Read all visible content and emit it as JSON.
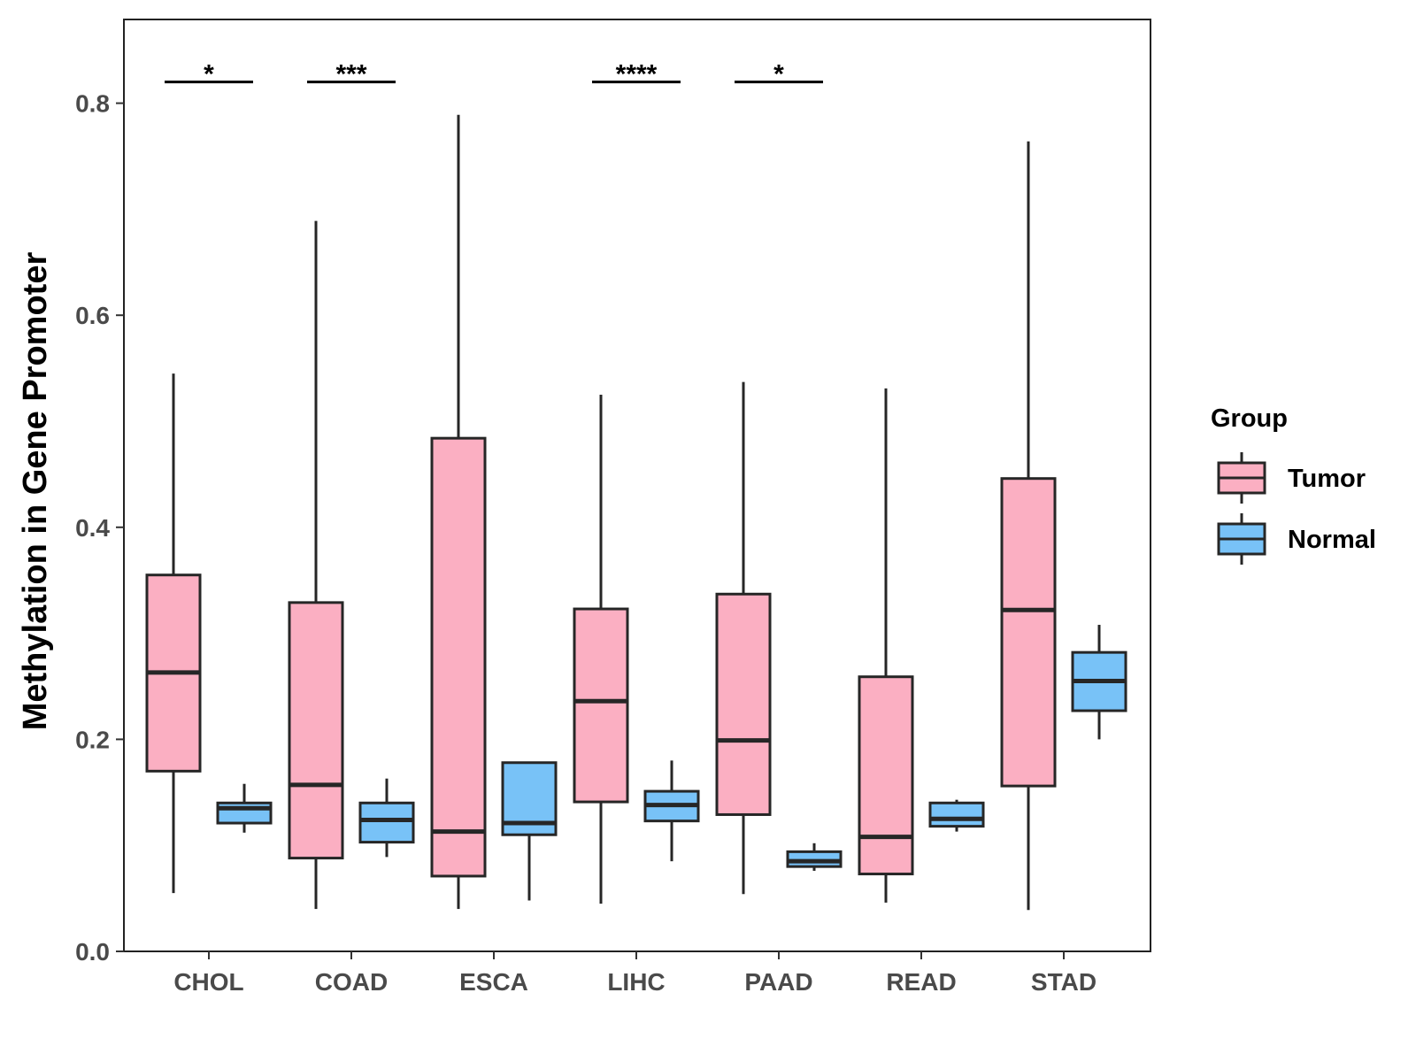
{
  "chart_data": {
    "type": "boxplot",
    "title": "",
    "xlabel": "",
    "ylabel": "Methylation in Gene Promoter",
    "ylim": [
      0,
      0.88
    ],
    "yticks": [
      0.0,
      0.2,
      0.4,
      0.6,
      0.8
    ],
    "ytick_labels": [
      "0.0",
      "0.2",
      "0.4",
      "0.6",
      "0.8"
    ],
    "categories": [
      "CHOL",
      "COAD",
      "ESCA",
      "LIHC",
      "PAAD",
      "READ",
      "STAD"
    ],
    "legend": {
      "title": "Group",
      "position": "right",
      "entries": [
        {
          "name": "Tumor",
          "color": "#FBAFC2"
        },
        {
          "name": "Normal",
          "color": "#78C2F7"
        }
      ]
    },
    "series": [
      {
        "name": "Tumor",
        "color": "#FBAFC2",
        "boxes": [
          {
            "category": "CHOL",
            "min": 0.055,
            "q1": 0.17,
            "median": 0.263,
            "q3": 0.355,
            "max": 0.545
          },
          {
            "category": "COAD",
            "min": 0.04,
            "q1": 0.088,
            "median": 0.157,
            "q3": 0.329,
            "max": 0.689
          },
          {
            "category": "ESCA",
            "min": 0.04,
            "q1": 0.071,
            "median": 0.113,
            "q3": 0.484,
            "max": 0.789
          },
          {
            "category": "LIHC",
            "min": 0.045,
            "q1": 0.141,
            "median": 0.236,
            "q3": 0.323,
            "max": 0.525
          },
          {
            "category": "PAAD",
            "min": 0.054,
            "q1": 0.129,
            "median": 0.199,
            "q3": 0.337,
            "max": 0.537
          },
          {
            "category": "READ",
            "min": 0.046,
            "q1": 0.073,
            "median": 0.108,
            "q3": 0.259,
            "max": 0.531
          },
          {
            "category": "STAD",
            "min": 0.039,
            "q1": 0.156,
            "median": 0.322,
            "q3": 0.446,
            "max": 0.764
          }
        ]
      },
      {
        "name": "Normal",
        "color": "#78C2F7",
        "boxes": [
          {
            "category": "CHOL",
            "min": 0.112,
            "q1": 0.121,
            "median": 0.135,
            "q3": 0.14,
            "max": 0.158
          },
          {
            "category": "COAD",
            "min": 0.089,
            "q1": 0.103,
            "median": 0.124,
            "q3": 0.14,
            "max": 0.163
          },
          {
            "category": "ESCA",
            "min": 0.048,
            "q1": 0.11,
            "median": 0.121,
            "q3": 0.178,
            "max": 0.178
          },
          {
            "category": "LIHC",
            "min": 0.085,
            "q1": 0.123,
            "median": 0.138,
            "q3": 0.151,
            "max": 0.18
          },
          {
            "category": "PAAD",
            "min": 0.076,
            "q1": 0.08,
            "median": 0.085,
            "q3": 0.094,
            "max": 0.102
          },
          {
            "category": "READ",
            "min": 0.113,
            "q1": 0.118,
            "median": 0.125,
            "q3": 0.14,
            "max": 0.143
          },
          {
            "category": "STAD",
            "min": 0.2,
            "q1": 0.227,
            "median": 0.255,
            "q3": 0.282,
            "max": 0.308
          }
        ]
      }
    ],
    "significance": [
      {
        "category": "CHOL",
        "label": "*",
        "y": 0.82
      },
      {
        "category": "COAD",
        "label": "***",
        "y": 0.82
      },
      {
        "category": "LIHC",
        "label": "****",
        "y": 0.82
      },
      {
        "category": "PAAD",
        "label": "*",
        "y": 0.82
      }
    ]
  }
}
